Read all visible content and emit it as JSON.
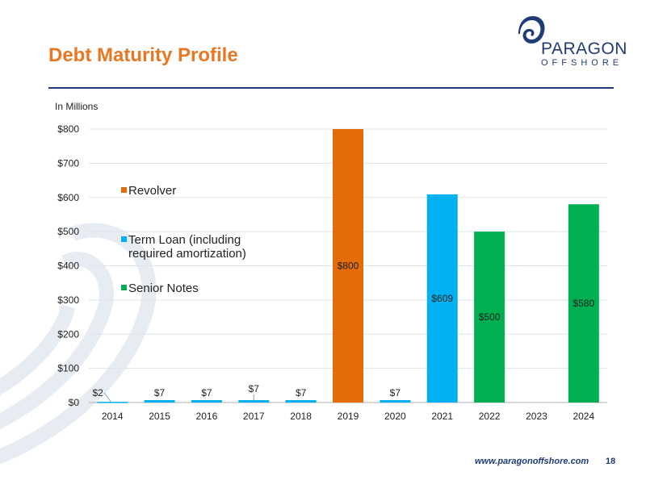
{
  "header": {
    "title": "Debt Maturity Profile",
    "logo_word": "PARAGON",
    "logo_sub": "OFFSHORE"
  },
  "units_label": "In Millions",
  "footer": {
    "url": "www.paragonoffshore.com",
    "page": "18"
  },
  "colors": {
    "title": "#e87722",
    "brand": "#1f3c78",
    "revolver": "#e36c09",
    "term_loan": "#00b0f0",
    "senior_notes": "#00b050"
  },
  "chart_data": {
    "type": "bar",
    "stacked": true,
    "categories": [
      "2014",
      "2015",
      "2016",
      "2017",
      "2018",
      "2019",
      "2020",
      "2021",
      "2022",
      "2023",
      "2024"
    ],
    "series": [
      {
        "name": "Revolver",
        "color": "#e36c09",
        "values": [
          0,
          0,
          0,
          0,
          0,
          800,
          0,
          0,
          0,
          0,
          0
        ]
      },
      {
        "name": "Term Loan (including\nrequired amortization)",
        "color": "#00b0f0",
        "values": [
          2,
          7,
          7,
          7,
          7,
          0,
          7,
          609,
          0,
          0,
          0
        ]
      },
      {
        "name": "Senior Notes",
        "color": "#00b050",
        "values": [
          0,
          0,
          0,
          0,
          0,
          0,
          0,
          0,
          500,
          0,
          580
        ]
      }
    ],
    "data_labels": [
      "$2",
      "$7",
      "$7",
      "$7",
      "$7",
      "$800",
      "$7",
      "$609",
      "$500",
      "",
      "$580"
    ],
    "y_ticks": [
      "$0",
      "$100",
      "$200",
      "$300",
      "$400",
      "$500",
      "$600",
      "$700",
      "$800"
    ],
    "ylim": [
      0,
      800
    ],
    "grid": true,
    "legend_position": "left-inside"
  }
}
